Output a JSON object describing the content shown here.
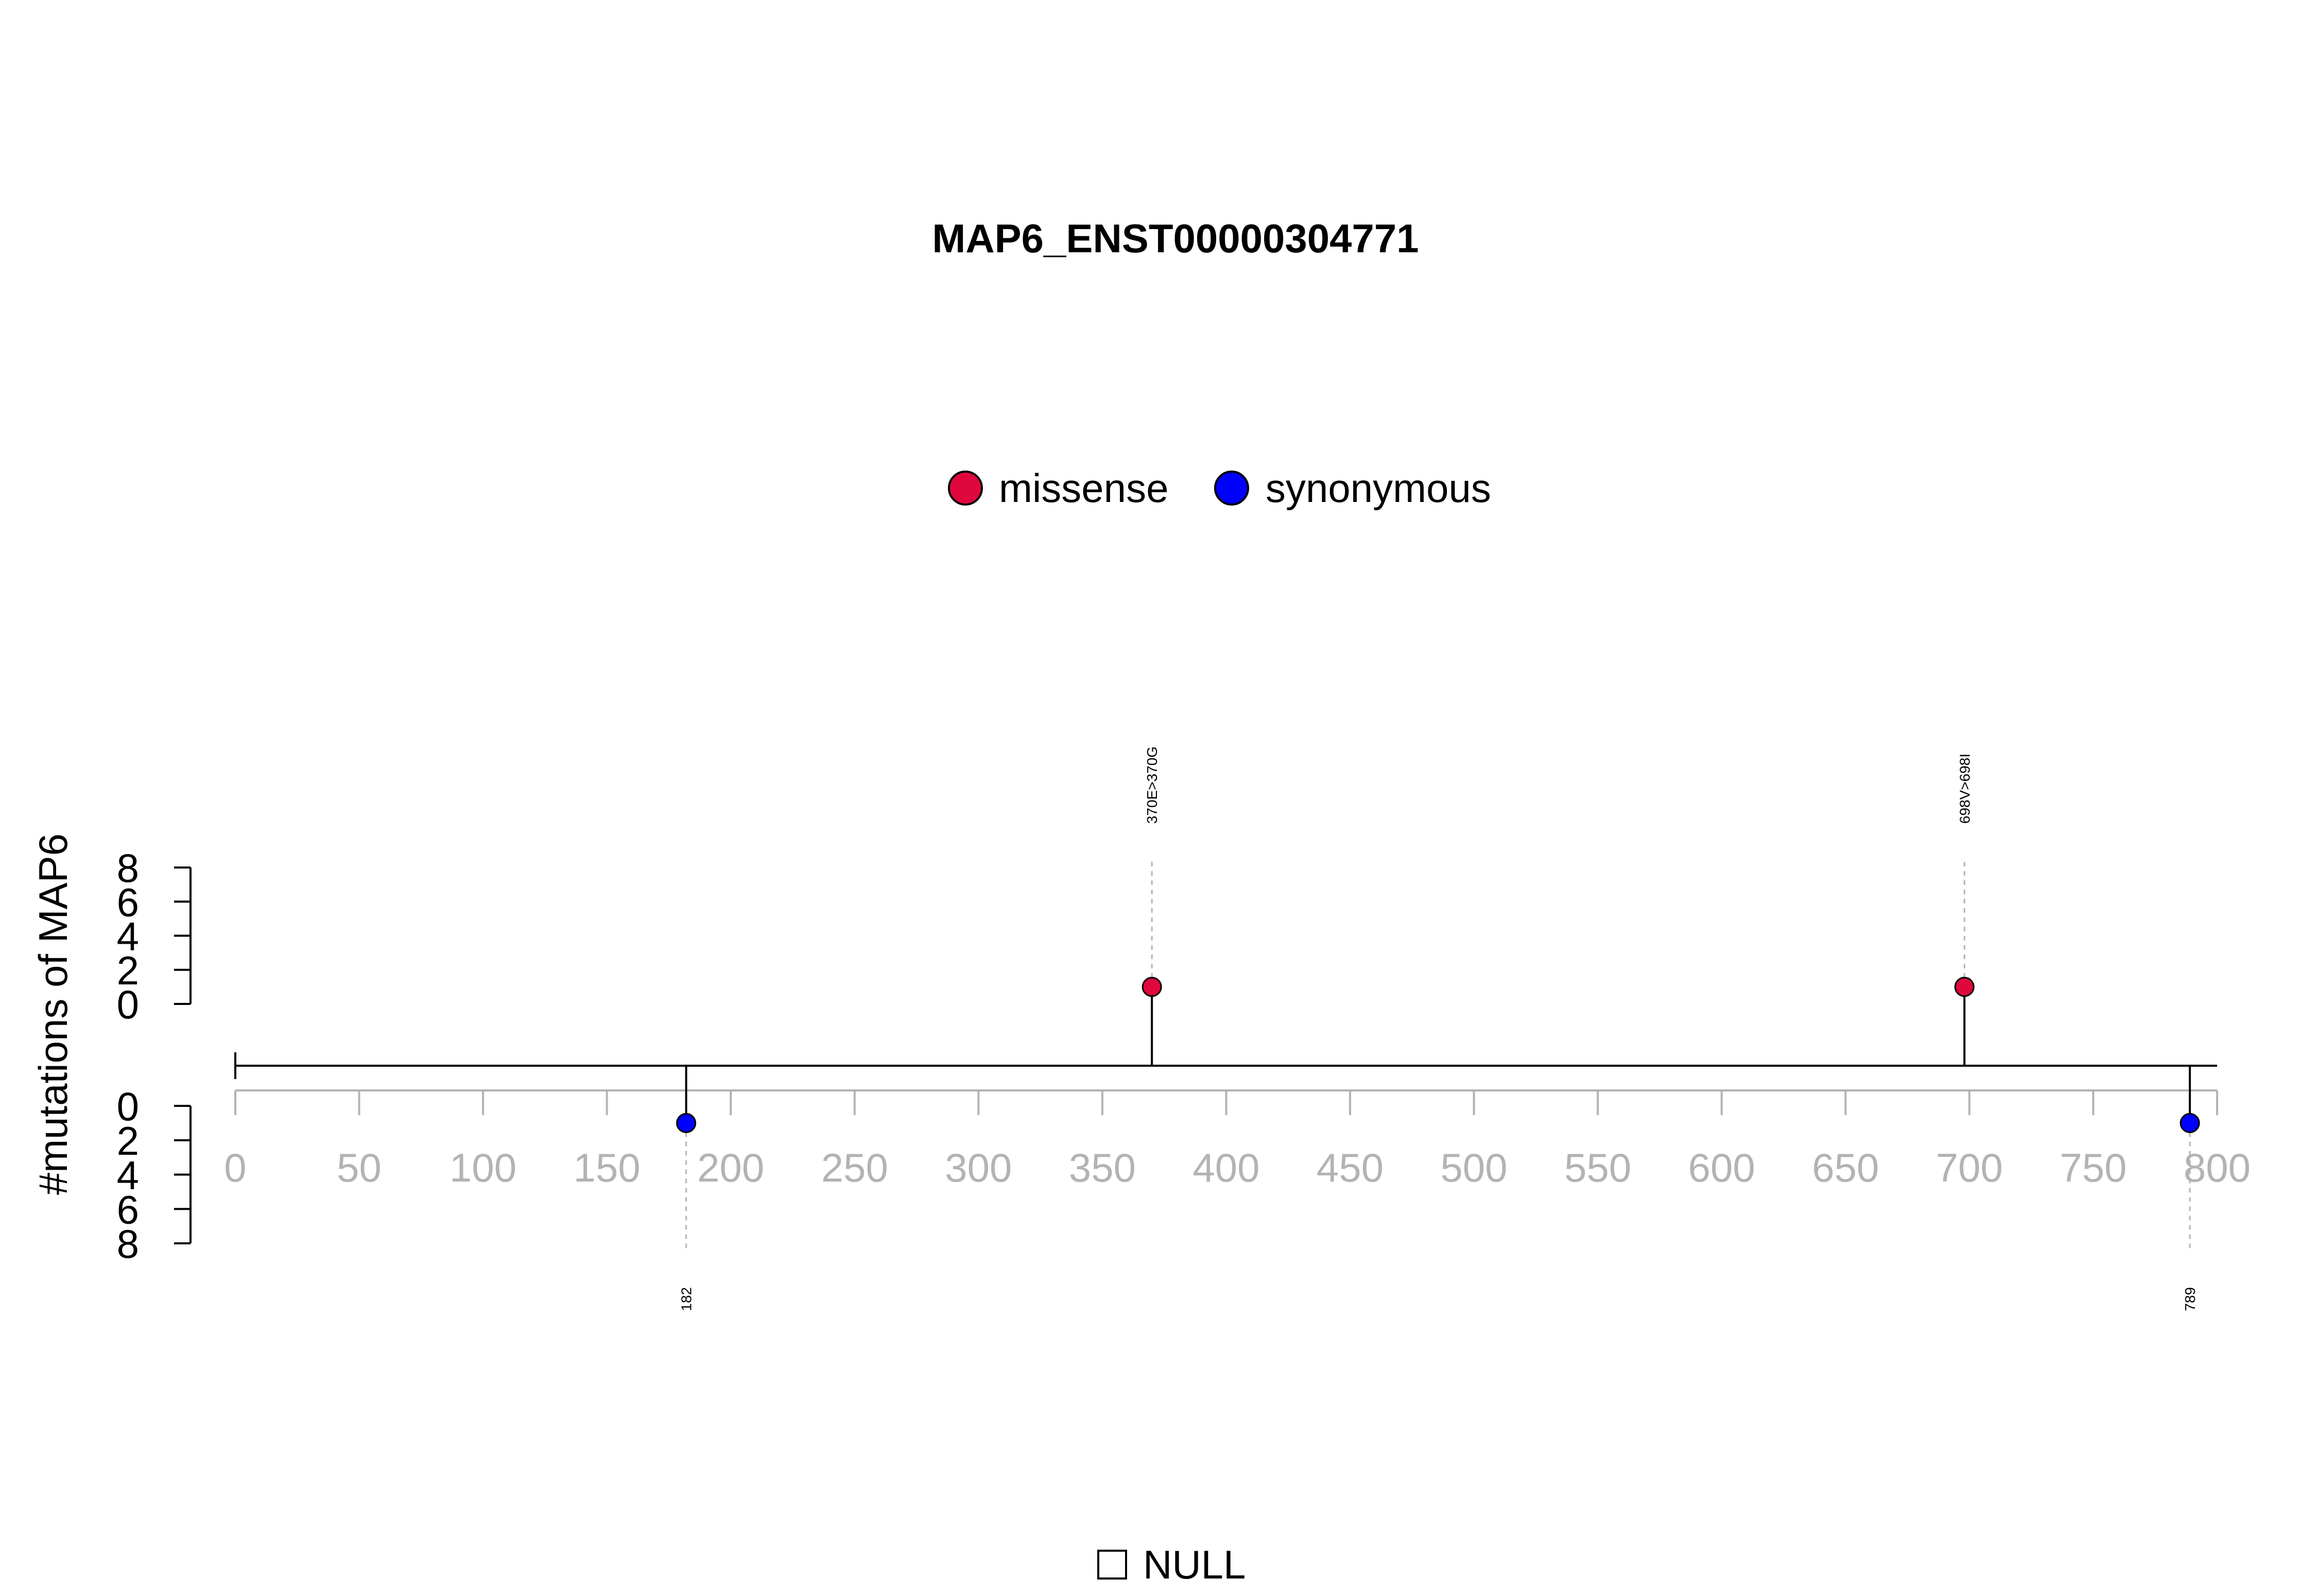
{
  "chart_data": {
    "type": "lollipop",
    "title": "MAP6_ENST00000304771",
    "ylabel": "#mutations of MAP6",
    "xlim": [
      0,
      800
    ],
    "x_ticks": [
      "0",
      "50",
      "100",
      "150",
      "200",
      "250",
      "300",
      "350",
      "400",
      "450",
      "500",
      "550",
      "600",
      "650",
      "700",
      "750",
      "800"
    ],
    "protein_length": 800,
    "y_ticks_upper": [
      "8",
      "6",
      "4",
      "2",
      "0"
    ],
    "y_ticks_lower": [
      "0",
      "2",
      "4",
      "6",
      "8"
    ],
    "ylim": [
      0,
      8
    ],
    "legend": {
      "placement": "top-center",
      "items": [
        {
          "name": "missense",
          "color": "#e0073d"
        },
        {
          "name": "synonymous",
          "color": "#0000ff"
        }
      ]
    },
    "mutations": [
      {
        "position": 370,
        "count": 1,
        "type": "missense",
        "side": "upper",
        "label": "370E>370G"
      },
      {
        "position": 698,
        "count": 1,
        "type": "missense",
        "side": "upper",
        "label": "698V>698I"
      },
      {
        "position": 182,
        "count": 1,
        "type": "synonymous",
        "side": "lower",
        "label": "182"
      },
      {
        "position": 789,
        "count": 1,
        "type": "synonymous",
        "side": "lower",
        "label": "789"
      }
    ],
    "domain_legend": {
      "label": "NULL",
      "symbol": "empty-square"
    }
  }
}
